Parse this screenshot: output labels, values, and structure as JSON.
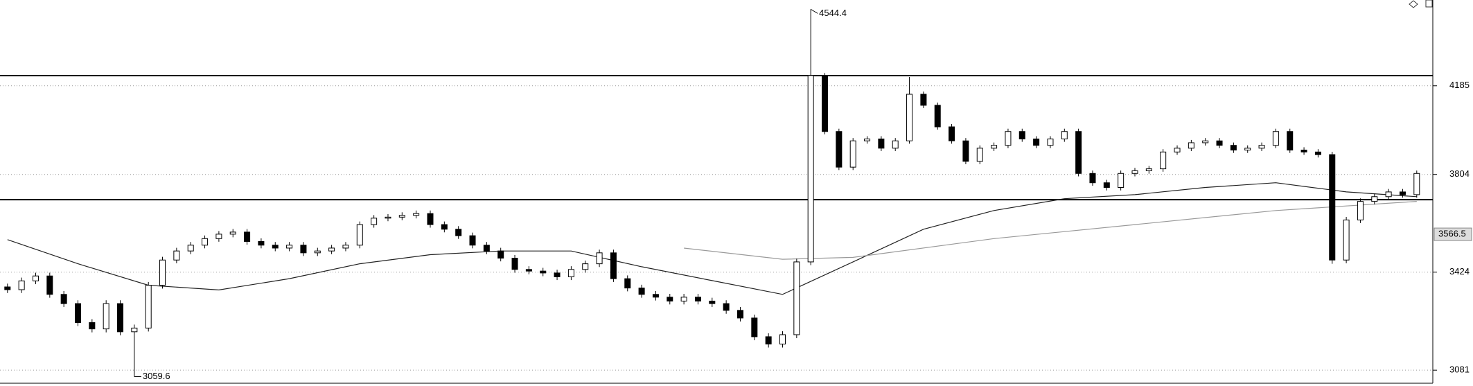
{
  "chart_data": {
    "type": "candlestick",
    "log_scale": true,
    "grid": true,
    "ylim": [
      3038,
      4590
    ],
    "yticks": [
      3081,
      3424,
      3804,
      4185
    ],
    "open": [
      3370,
      3360,
      3392,
      3410,
      3343,
      3310,
      3243,
      3221,
      3310,
      3211,
      3224,
      3376,
      3469,
      3503,
      3525,
      3550,
      3567,
      3575,
      3539,
      3525,
      3514,
      3525,
      3496,
      3503,
      3514,
      3525,
      3604,
      3629,
      3633,
      3640,
      3647,
      3604,
      3586,
      3561,
      3525,
      3503,
      3476,
      3434,
      3428,
      3421,
      3407,
      3434,
      3455,
      3496,
      3400,
      3366,
      3343,
      3333,
      3319,
      3333,
      3319,
      3310,
      3286,
      3259,
      3194,
      3169,
      3201,
      3462,
      4231,
      3984,
      3834,
      3944,
      3952,
      3913,
      3944,
      4147,
      4098,
      4004,
      3944,
      3858,
      3913,
      3925,
      3984,
      3952,
      3925,
      3952,
      3984,
      3808,
      3770,
      3751,
      3808,
      3819,
      3827,
      3897,
      3913,
      3936,
      3944,
      3925,
      3905,
      3913,
      3925,
      3984,
      3905,
      3897,
      3886,
      3469,
      3622,
      3695,
      3714,
      3733,
      3722
    ],
    "high": [
      3382,
      3404,
      3422,
      3422,
      3355,
      3322,
      3255,
      3322,
      3322,
      3236,
      3388,
      3481,
      3515,
      3537,
      3562,
      3579,
      3587,
      3587,
      3551,
      3537,
      3537,
      3537,
      3515,
      3526,
      3537,
      3616,
      3641,
      3645,
      3652,
      3659,
      3659,
      3616,
      3598,
      3573,
      3537,
      3515,
      3488,
      3446,
      3440,
      3433,
      3446,
      3467,
      3508,
      3508,
      3412,
      3378,
      3355,
      3345,
      3345,
      3345,
      3331,
      3322,
      3298,
      3271,
      3206,
      3213,
      3474,
      4544.4,
      4243,
      3996,
      3956,
      3964,
      3964,
      3956,
      4225,
      4159,
      4110,
      4016,
      3956,
      3925,
      3937,
      3996,
      3996,
      3964,
      3964,
      3996,
      3996,
      3820,
      3782,
      3820,
      3831,
      3839,
      3909,
      3925,
      3948,
      3956,
      3956,
      3937,
      3925,
      3937,
      3996,
      3996,
      3917,
      3909,
      3898,
      3634,
      3707,
      3726,
      3745,
      3745,
      3820
    ],
    "low": [
      3348,
      3348,
      3380,
      3331,
      3298,
      3231,
      3209,
      3209,
      3199,
      3059.6,
      3212,
      3364,
      3457,
      3491,
      3513,
      3538,
      3555,
      3527,
      3513,
      3502,
      3502,
      3484,
      3484,
      3491,
      3502,
      3513,
      3592,
      3617,
      3621,
      3628,
      3592,
      3574,
      3549,
      3513,
      3491,
      3464,
      3422,
      3416,
      3409,
      3395,
      3395,
      3422,
      3443,
      3388,
      3354,
      3331,
      3321,
      3307,
      3307,
      3307,
      3298,
      3274,
      3247,
      3182,
      3157,
      3157,
      3189,
      3450,
      3972,
      3822,
      3822,
      3932,
      3901,
      3901,
      3932,
      4086,
      3992,
      3932,
      3846,
      3846,
      3901,
      3913,
      3940,
      3913,
      3913,
      3940,
      3796,
      3758,
      3739,
      3739,
      3796,
      3807,
      3815,
      3885,
      3901,
      3924,
      3913,
      3893,
      3893,
      3901,
      3913,
      3893,
      3885,
      3874,
      3455,
      3457,
      3610,
      3683,
      3702,
      3710,
      3710
    ],
    "close": [
      3360,
      3392,
      3410,
      3343,
      3310,
      3243,
      3221,
      3310,
      3211,
      3224,
      3376,
      3469,
      3503,
      3525,
      3550,
      3567,
      3575,
      3539,
      3525,
      3514,
      3525,
      3496,
      3503,
      3514,
      3525,
      3604,
      3629,
      3633,
      3640,
      3647,
      3604,
      3586,
      3561,
      3525,
      3503,
      3476,
      3434,
      3428,
      3421,
      3407,
      3434,
      3455,
      3496,
      3400,
      3366,
      3343,
      3333,
      3319,
      3333,
      3319,
      3310,
      3286,
      3259,
      3194,
      3169,
      3201,
      3462,
      4231,
      3984,
      3834,
      3944,
      3952,
      3913,
      3944,
      4147,
      4098,
      4004,
      3944,
      3858,
      3913,
      3925,
      3984,
      3952,
      3925,
      3952,
      3984,
      3808,
      3770,
      3751,
      3808,
      3819,
      3827,
      3897,
      3913,
      3936,
      3944,
      3925,
      3905,
      3913,
      3925,
      3984,
      3905,
      3897,
      3886,
      3469,
      3622,
      3695,
      3714,
      3733,
      3722,
      3808
    ],
    "ma_lines": [
      {
        "color": "#222222",
        "x": [
          0,
          5,
          10,
          15,
          20,
          25,
          30,
          35,
          40,
          45,
          50,
          55,
          60,
          65,
          70,
          75,
          80,
          85,
          90,
          95,
          100
        ],
        "values": [
          3546,
          3455,
          3376,
          3359,
          3400,
          3455,
          3489,
          3503,
          3503,
          3444,
          3393,
          3343,
          3462,
          3586,
          3659,
          3706,
          3722,
          3751,
          3770,
          3733,
          3714
        ]
      },
      {
        "color": "#999999",
        "x": [
          48,
          55,
          60,
          70,
          80,
          90,
          100
        ],
        "values": [
          3514,
          3472,
          3479,
          3550,
          3604,
          3659,
          3695
        ]
      }
    ],
    "hlines": [
      4231,
      3702
    ],
    "price_marker": 3566.5
  }
}
